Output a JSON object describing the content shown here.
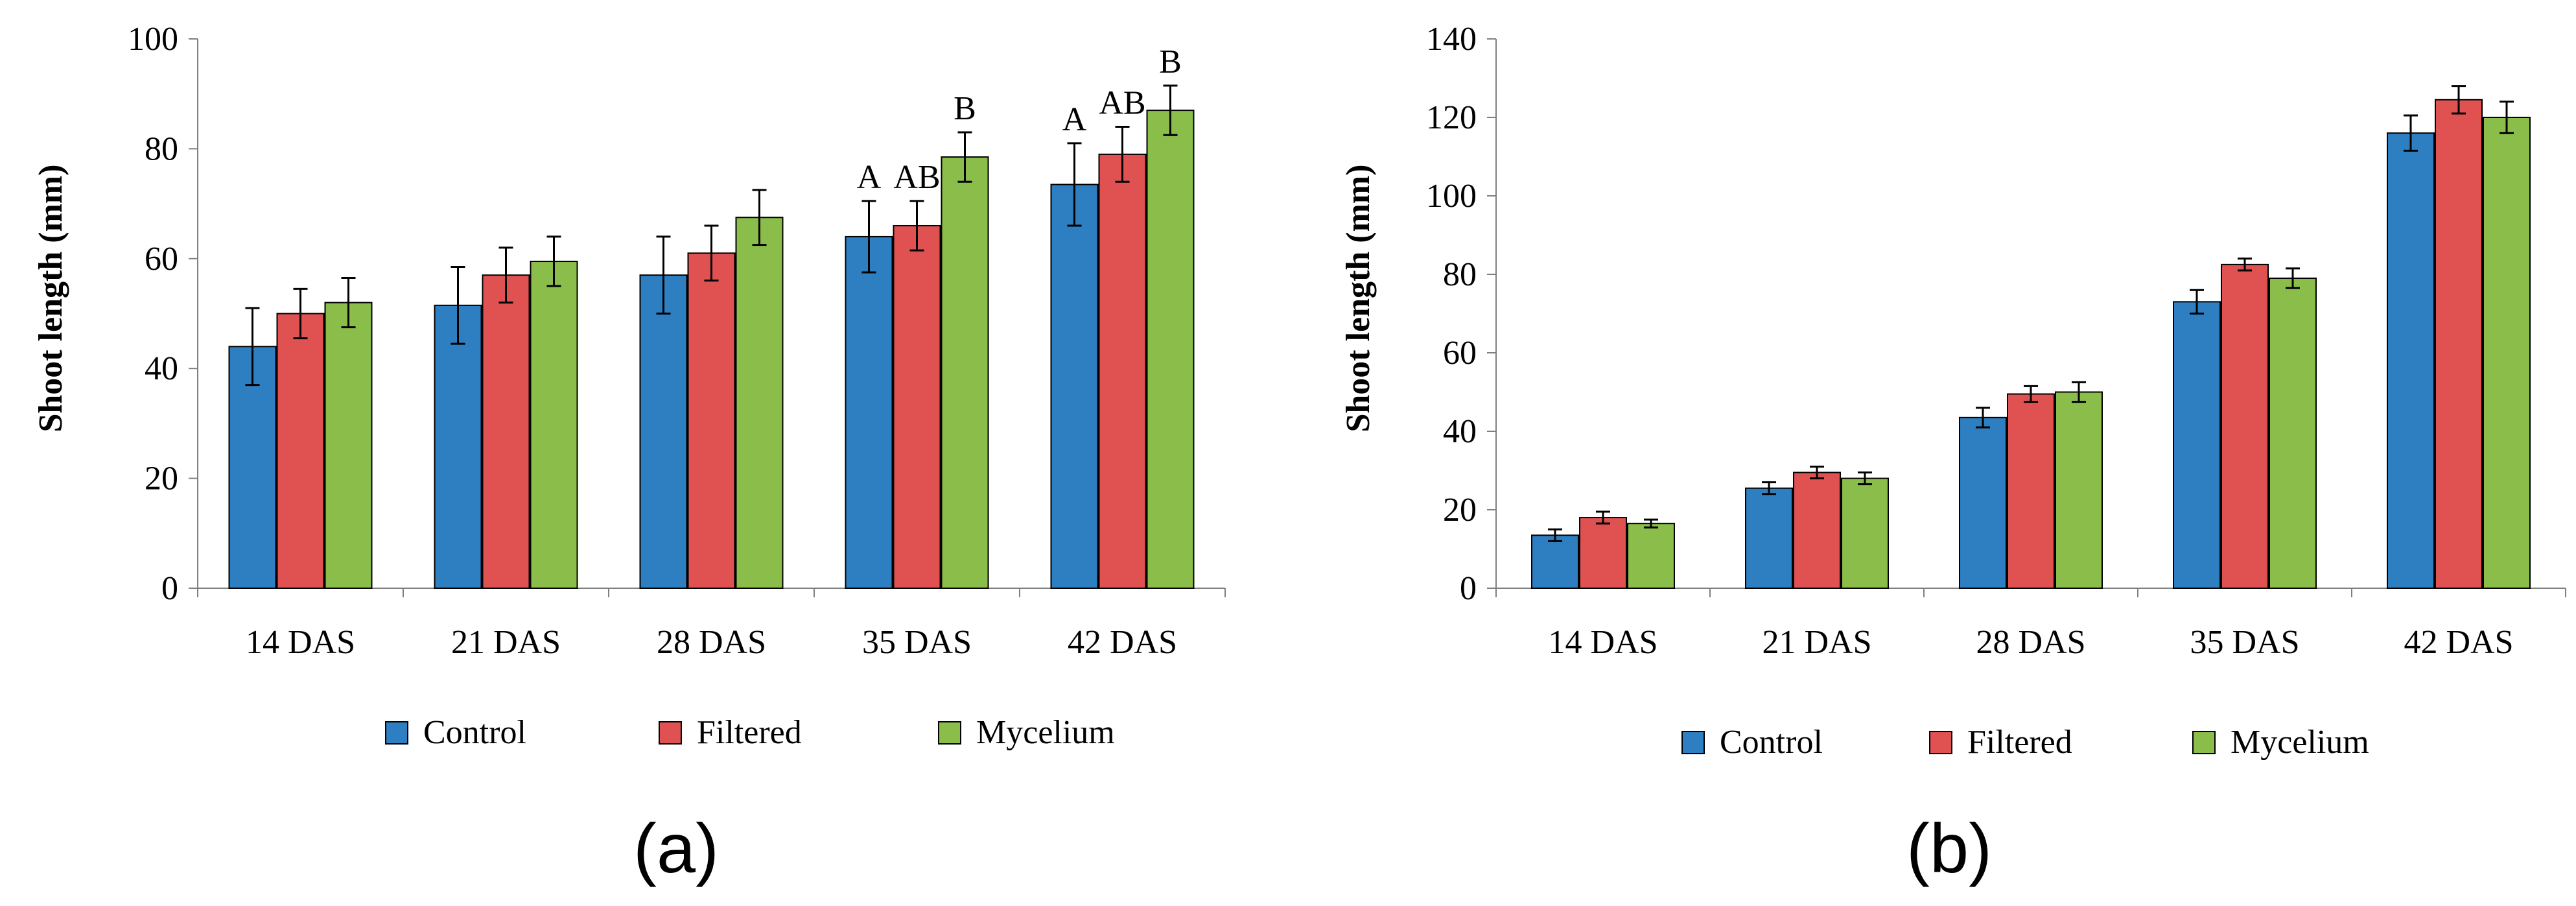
{
  "colors": {
    "control": "#2E7EC2",
    "filtered": "#E05252",
    "mycelium": "#8BBD4A",
    "axis": "#7F7F7F",
    "error_bar": "#000000"
  },
  "chart_data": [
    {
      "type": "bar",
      "panel_label": "(a)",
      "categories": [
        "14 DAS",
        "21 DAS",
        "28 DAS",
        "35 DAS",
        "42 DAS"
      ],
      "series": [
        {
          "name": "Control",
          "values": [
            44,
            51.5,
            57,
            64,
            73.5
          ],
          "errors": [
            7,
            7,
            7,
            6.5,
            7.5
          ]
        },
        {
          "name": "Filtered",
          "values": [
            50,
            57,
            61,
            66,
            79
          ],
          "errors": [
            4.5,
            5,
            5,
            4.5,
            5
          ]
        },
        {
          "name": "Mycelium",
          "values": [
            52,
            59.5,
            67.5,
            78.5,
            87
          ],
          "errors": [
            4.5,
            4.5,
            5,
            4.5,
            4.5
          ]
        }
      ],
      "annotations": [
        {
          "category": "35 DAS",
          "series": "Control",
          "text": "A"
        },
        {
          "category": "35 DAS",
          "series": "Filtered",
          "text": "AB"
        },
        {
          "category": "35 DAS",
          "series": "Mycelium",
          "text": "B"
        },
        {
          "category": "42 DAS",
          "series": "Control",
          "text": "A"
        },
        {
          "category": "42 DAS",
          "series": "Filtered",
          "text": "AB"
        },
        {
          "category": "42 DAS",
          "series": "Mycelium",
          "text": "B"
        }
      ],
      "xlabel": "",
      "ylabel": "Shoot length (mm)",
      "ylim": [
        0,
        100
      ],
      "yticks": [
        0,
        20,
        40,
        60,
        80,
        100
      ],
      "legend": [
        "Control",
        "Filtered",
        "Mycelium"
      ],
      "legend_position": "bottom"
    },
    {
      "type": "bar",
      "panel_label": "(b)",
      "categories": [
        "14 DAS",
        "21 DAS",
        "28 DAS",
        "35 DAS",
        "42 DAS"
      ],
      "series": [
        {
          "name": "Control",
          "values": [
            13.5,
            25.5,
            43.5,
            73,
            116
          ],
          "errors": [
            1.5,
            1.5,
            2.5,
            3,
            4.5
          ]
        },
        {
          "name": "Filtered",
          "values": [
            18,
            29.5,
            49.5,
            82.5,
            124.5
          ],
          "errors": [
            1.5,
            1.5,
            2,
            1.5,
            3.5
          ]
        },
        {
          "name": "Mycelium",
          "values": [
            16.5,
            28,
            50,
            79,
            120
          ],
          "errors": [
            1,
            1.5,
            2.5,
            2.5,
            4
          ]
        }
      ],
      "annotations": [],
      "xlabel": "",
      "ylabel": "Shoot length (mm)",
      "ylim": [
        0,
        140
      ],
      "yticks": [
        0,
        20,
        40,
        60,
        80,
        100,
        120,
        140
      ],
      "legend": [
        "Control",
        "Filtered",
        "Mycelium"
      ],
      "legend_position": "bottom"
    }
  ]
}
